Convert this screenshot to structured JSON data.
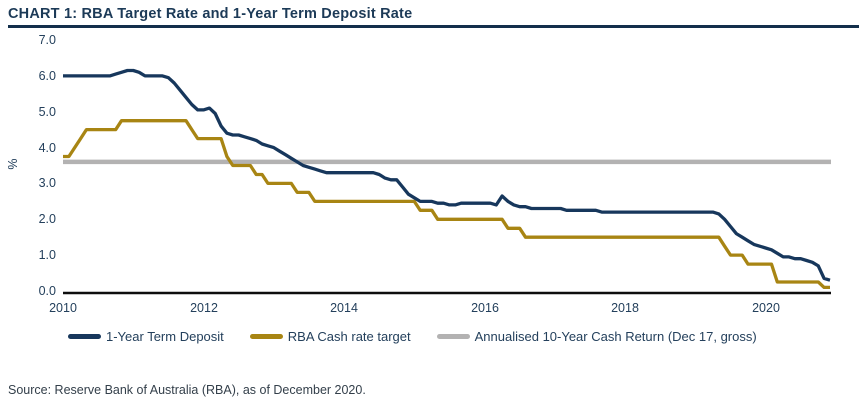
{
  "header": {
    "title": "CHART 1: RBA Target Rate and 1-Year Term Deposit Rate"
  },
  "footer": {
    "source": "Source: Reserve Bank of Australia (RBA), as of December 2020."
  },
  "colors": {
    "term_deposit_line": "#17375C",
    "cash_rate_line": "#A88513",
    "cash_return_line": "#B3B2B2",
    "axis_line": "#0d0d0d",
    "text_navy": "#24405c"
  },
  "chart_data": {
    "type": "line",
    "title": "CHART 1: RBA Target Rate and 1-Year Term Deposit Rate",
    "xlabel": "",
    "ylabel": "%",
    "ylim": [
      0.0,
      7.0
    ],
    "xlim": [
      2010,
      2020.92
    ],
    "grid": false,
    "legend_position": "bottom",
    "y_tick_labels": [
      "7.0",
      "6.0",
      "5.0",
      "4.0",
      "3.0",
      "2.0",
      "1.0",
      "0.0"
    ],
    "x_tick_labels": [
      "2010",
      "2012",
      "2014",
      "2016",
      "2018",
      "2020"
    ],
    "x_tick_years": [
      2010,
      2012,
      2014,
      2016,
      2018,
      2020
    ],
    "x_start_year": 2010,
    "points_per_year": 12,
    "x_end": "December 2020",
    "series": [
      {
        "name": "1-Year Term Deposit",
        "color": "#17375C",
        "values": [
          6.0,
          6.0,
          6.0,
          6.0,
          6.0,
          6.0,
          6.0,
          6.0,
          6.0,
          6.05,
          6.1,
          6.15,
          6.15,
          6.1,
          6.0,
          6.0,
          6.0,
          6.0,
          5.95,
          5.8,
          5.6,
          5.4,
          5.2,
          5.05,
          5.05,
          5.1,
          4.95,
          4.6,
          4.4,
          4.35,
          4.35,
          4.3,
          4.25,
          4.2,
          4.1,
          4.05,
          4.0,
          3.9,
          3.8,
          3.7,
          3.6,
          3.5,
          3.45,
          3.4,
          3.35,
          3.3,
          3.3,
          3.3,
          3.3,
          3.3,
          3.3,
          3.3,
          3.3,
          3.3,
          3.25,
          3.15,
          3.1,
          3.1,
          2.9,
          2.7,
          2.6,
          2.5,
          2.5,
          2.5,
          2.45,
          2.45,
          2.4,
          2.4,
          2.45,
          2.45,
          2.45,
          2.45,
          2.45,
          2.45,
          2.4,
          2.65,
          2.5,
          2.4,
          2.35,
          2.35,
          2.3,
          2.3,
          2.3,
          2.3,
          2.3,
          2.3,
          2.25,
          2.25,
          2.25,
          2.25,
          2.25,
          2.25,
          2.2,
          2.2,
          2.2,
          2.2,
          2.2,
          2.2,
          2.2,
          2.2,
          2.2,
          2.2,
          2.2,
          2.2,
          2.2,
          2.2,
          2.2,
          2.2,
          2.2,
          2.2,
          2.2,
          2.2,
          2.15,
          2.0,
          1.8,
          1.6,
          1.5,
          1.4,
          1.3,
          1.25,
          1.2,
          1.15,
          1.05,
          0.95,
          0.95,
          0.9,
          0.9,
          0.85,
          0.8,
          0.7,
          0.35,
          0.3
        ]
      },
      {
        "name": "RBA Cash rate target",
        "color": "#A88513",
        "values": [
          3.75,
          3.75,
          4.0,
          4.25,
          4.5,
          4.5,
          4.5,
          4.5,
          4.5,
          4.5,
          4.75,
          4.75,
          4.75,
          4.75,
          4.75,
          4.75,
          4.75,
          4.75,
          4.75,
          4.75,
          4.75,
          4.75,
          4.5,
          4.25,
          4.25,
          4.25,
          4.25,
          4.25,
          3.75,
          3.5,
          3.5,
          3.5,
          3.5,
          3.25,
          3.25,
          3.0,
          3.0,
          3.0,
          3.0,
          3.0,
          2.75,
          2.75,
          2.75,
          2.5,
          2.5,
          2.5,
          2.5,
          2.5,
          2.5,
          2.5,
          2.5,
          2.5,
          2.5,
          2.5,
          2.5,
          2.5,
          2.5,
          2.5,
          2.5,
          2.5,
          2.5,
          2.25,
          2.25,
          2.25,
          2.0,
          2.0,
          2.0,
          2.0,
          2.0,
          2.0,
          2.0,
          2.0,
          2.0,
          2.0,
          2.0,
          2.0,
          1.75,
          1.75,
          1.75,
          1.5,
          1.5,
          1.5,
          1.5,
          1.5,
          1.5,
          1.5,
          1.5,
          1.5,
          1.5,
          1.5,
          1.5,
          1.5,
          1.5,
          1.5,
          1.5,
          1.5,
          1.5,
          1.5,
          1.5,
          1.5,
          1.5,
          1.5,
          1.5,
          1.5,
          1.5,
          1.5,
          1.5,
          1.5,
          1.5,
          1.5,
          1.5,
          1.5,
          1.5,
          1.25,
          1.0,
          1.0,
          1.0,
          0.75,
          0.75,
          0.75,
          0.75,
          0.75,
          0.25,
          0.25,
          0.25,
          0.25,
          0.25,
          0.25,
          0.25,
          0.25,
          0.1,
          0.1
        ]
      },
      {
        "name": "Annualised 10-Year Cash Return (Dec 17, gross)",
        "color": "#B3B2B2",
        "constant": 3.6
      }
    ]
  }
}
